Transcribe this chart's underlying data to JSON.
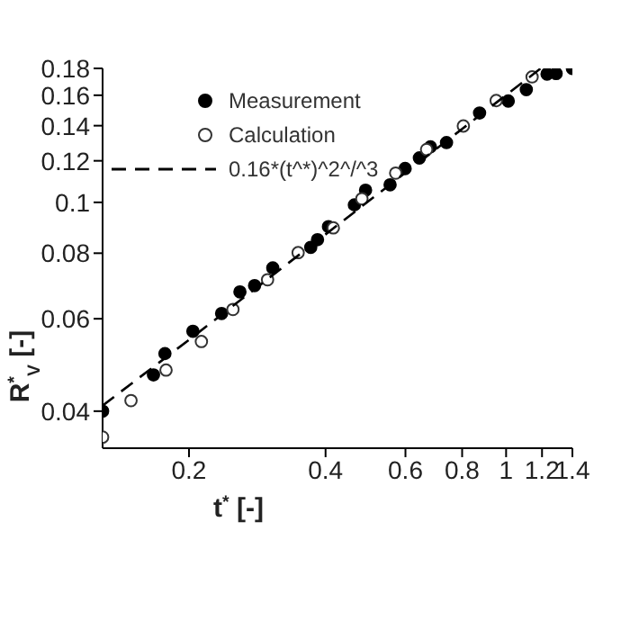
{
  "chart_data": {
    "type": "scatter",
    "xlabel": "t$^{*}$ [-]",
    "ylabel": "R$^{*}$$_{V}$ [-]",
    "log": "xy",
    "xlim": [
      0.129,
      1.4
    ],
    "ylim": [
      0.034,
      0.18
    ],
    "xticks": [
      0.2,
      0.4,
      0.6,
      0.8,
      1,
      1.2,
      1.4
    ],
    "yticks": [
      0.04,
      0.06,
      0.08,
      0.1,
      0.12,
      0.14,
      0.16,
      0.18
    ],
    "grid": false,
    "legend": "top left",
    "marker": "circle",
    "series": [
      {
        "name": "Measurement",
        "color": "#000000",
        "x": [
          0.129,
          0.167,
          0.177,
          0.204,
          0.236,
          0.259,
          0.279,
          0.306,
          0.371,
          0.384,
          0.406,
          0.463,
          0.49,
          0.555,
          0.599,
          0.644,
          0.681,
          0.739,
          0.874,
          1.011,
          1.108,
          1.231,
          1.289,
          1.4
        ],
        "values": [
          0.04,
          0.0469,
          0.0515,
          0.0568,
          0.0614,
          0.0675,
          0.0694,
          0.075,
          0.0821,
          0.0849,
          0.0899,
          0.0989,
          0.1055,
          0.108,
          0.116,
          0.1215,
          0.1276,
          0.13,
          0.148,
          0.156,
          0.164,
          0.1756,
          0.176,
          0.18
        ]
      },
      {
        "name": "Calculation",
        "color": "#333333",
        "x": [
          0.129,
          0.149,
          0.178,
          0.213,
          0.25,
          0.298,
          0.348,
          0.416,
          0.481,
          0.571,
          0.668,
          0.805,
          0.951,
          1.141
        ],
        "values": [
          0.0357,
          0.0419,
          0.0479,
          0.0543,
          0.0625,
          0.0712,
          0.0802,
          0.0894,
          0.1016,
          0.1137,
          0.1261,
          0.1398,
          0.1563,
          0.1734
        ]
      },
      {
        "name": "0.16*(t^*)^2^/^3",
        "type": "line",
        "color": "#000000",
        "marker": "none",
        "line_style": "dashed",
        "x": [
          0.129,
          0.2,
          0.4,
          0.8,
          1.19
        ],
        "values": [
          0.041,
          0.0547,
          0.0869,
          0.138,
          0.1798
        ]
      }
    ]
  }
}
